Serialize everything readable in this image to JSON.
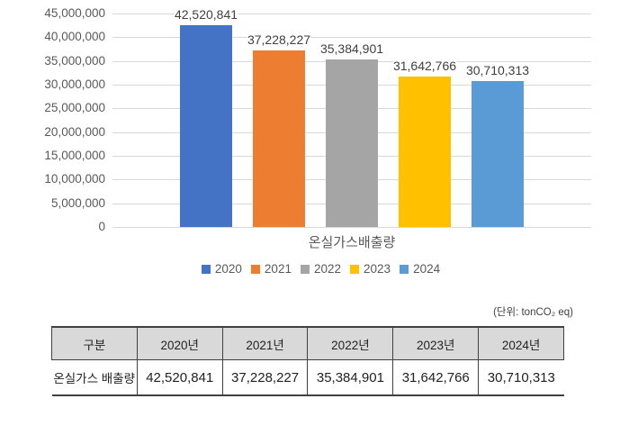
{
  "chart_data": {
    "type": "bar",
    "title": "",
    "categories": [
      "온실가스배출량"
    ],
    "series": [
      {
        "name": "2020",
        "color": "#4472C4",
        "values": [
          42520841
        ]
      },
      {
        "name": "2021",
        "color": "#ED7D31",
        "values": [
          37228227
        ]
      },
      {
        "name": "2022",
        "color": "#A5A5A5",
        "values": [
          35384901
        ]
      },
      {
        "name": "2023",
        "color": "#FFC000",
        "values": [
          31642766
        ]
      },
      {
        "name": "2024",
        "color": "#5B9BD5",
        "values": [
          30710313
        ]
      }
    ],
    "data_labels": [
      "42,520,841",
      "37,228,227",
      "35,384,901",
      "31,642,766",
      "30,710,313"
    ],
    "xlabel": "온실가스배출량",
    "ylabel": "",
    "ylim": [
      0,
      45000000
    ],
    "ytick_step": 5000000,
    "ytick_labels": [
      "45,000,000",
      "40,000,000",
      "35,000,000",
      "30,000,000",
      "25,000,000",
      "20,000,000",
      "15,000,000",
      "10,000,000",
      "5,000,000",
      "0"
    ],
    "grid": true,
    "gridline_color": "#D9D9D9",
    "legend_position": "bottom",
    "legend_entries": [
      "2020",
      "2021",
      "2022",
      "2023",
      "2024"
    ]
  },
  "unit_note": "(단위: tonCO₂ eq)",
  "table": {
    "headers": [
      "구분",
      "2020년",
      "2021년",
      "2022년",
      "2023년",
      "2024년"
    ],
    "rows": [
      [
        "온실가스 배출량",
        "42,520,841",
        "37,228,227",
        "35,384,901",
        "31,642,766",
        "30,710,313"
      ]
    ],
    "header_bg": "#D9D9D9",
    "border_color": "#404040"
  }
}
